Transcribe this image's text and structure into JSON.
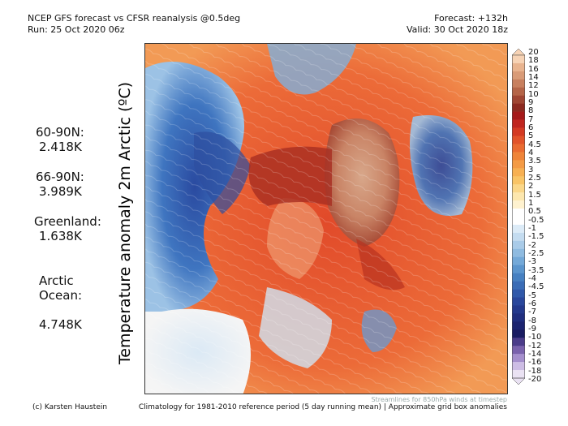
{
  "header": {
    "title": "NCEP GFS forecast vs CFSR reanalysis @0.5deg",
    "run": "Run: 25 Oct 2020 06z",
    "forecast": "Forecast: +132h",
    "valid": "Valid: 30 Oct 2020 18z"
  },
  "stats": [
    {
      "label": "60-90N:",
      "value": "2.418K"
    },
    {
      "label": "66-90N:",
      "value": "3.989K"
    },
    {
      "label": "Greenland:",
      "value": "1.638K"
    },
    {
      "label": "Arctic\nOcean:",
      "value": "4.748K"
    }
  ],
  "y_label": "Temperature anomaly 2m Arctic (ºC)",
  "colorbar": {
    "labels": [
      "20",
      "18",
      "16",
      "14",
      "12",
      "10",
      "9",
      "8",
      "7",
      "6",
      "5",
      "4.5",
      "4",
      "3.5",
      "3",
      "2.5",
      "2",
      "1.5",
      "1",
      "0.5",
      "-0.5",
      "-1",
      "-1.5",
      "-2",
      "-2.5",
      "-3",
      "-3.5",
      "-4",
      "-4.5",
      "-5",
      "-6",
      "-7",
      "-8",
      "-9",
      "-10",
      "-12",
      "-14",
      "-16",
      "-18",
      "-20"
    ],
    "colors": [
      "#f7d3b5",
      "#e9b48f",
      "#d99b77",
      "#c8805f",
      "#b56548",
      "#a04633",
      "#8d2a20",
      "#a51a1a",
      "#c0261f",
      "#d43a23",
      "#e2532a",
      "#ea6b31",
      "#ef8439",
      "#f49b45",
      "#f7b052",
      "#f9c466",
      "#fbd789",
      "#fde7ae",
      "#fff2cf",
      "#ffffff",
      "#ffffff",
      "#dcebf7",
      "#c4dcf0",
      "#a9cbe8",
      "#8fbbe0",
      "#74a9d8",
      "#5b95cd",
      "#4680c1",
      "#3a6cb6",
      "#3159aa",
      "#2a479c",
      "#24398d",
      "#202e7f",
      "#1c2470",
      "#1a1c62",
      "#4b3c8a",
      "#7a62ad",
      "#a58fcd",
      "#cdbde5",
      "#eae2f3"
    ]
  },
  "footer": {
    "credit": "(c) Karsten Haustein",
    "climatology": "Climatology for 1981-2010 reference period (5 day running mean) | Approximate grid box anomalies",
    "streamlines": "Streamlines for 850hPa winds at timestep"
  }
}
